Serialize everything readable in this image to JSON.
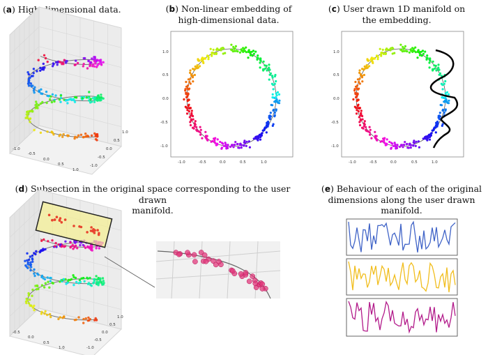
{
  "figure": {
    "panel_a": {
      "letter": "a",
      "caption": "High-dimensional data."
    },
    "panel_b": {
      "letter": "b",
      "caption_line1": "Non-linear embedding of",
      "caption_line2": "high-dimensional data."
    },
    "panel_c": {
      "letter": "c",
      "caption_line1": "User drawn 1D manifold on",
      "caption_line2": "the embedding."
    },
    "panel_d": {
      "letter": "d",
      "caption_line1": "Subsection in the original space corresponding to the user drawn",
      "caption_line2": "manifold."
    },
    "panel_e": {
      "letter": "e",
      "caption_line1": "Behaviour of each of the original",
      "caption_line2": "dimensions along the user drawn manifold."
    }
  },
  "axes_3d": {
    "x_ticks": [
      "-1.0",
      "-0.5",
      "0.0",
      "0.5",
      "1.0"
    ],
    "y_ticks": [
      "1.0",
      "0.5",
      "0.0",
      "-0.5",
      "-1.0"
    ]
  },
  "embedding_axes": {
    "x_ticks": [
      "-1.0",
      "-0.5",
      "0.0",
      "0.5",
      "1.0"
    ],
    "y_ticks": [
      "1.0",
      "0.5",
      "0.0",
      "-0.5",
      "-1.0"
    ]
  },
  "chart_data": [
    {
      "type": "scatter",
      "title": "Non-linear embedding of high-dimensional data.",
      "xlim": [
        -1.2,
        1.2
      ],
      "ylim": [
        -1.2,
        1.2
      ],
      "xticks": [
        -1.0,
        -0.5,
        0.0,
        0.5,
        1.0
      ],
      "yticks": [
        -1.0,
        -0.5,
        0.0,
        0.5,
        1.0
      ],
      "series": [
        {
          "name": "embedded points (ring, radius ~1, hue-coloured by position)",
          "n_points": 320,
          "radius": 1.0
        }
      ]
    },
    {
      "type": "line",
      "title": "Behaviour of each of the original dimensions along the user drawn manifold.",
      "series": [
        {
          "name": "dimension 1",
          "color": "#3f63c7"
        },
        {
          "name": "dimension 2",
          "color": "#f1bd1c"
        },
        {
          "name": "dimension 3",
          "color": "#b21a8a"
        }
      ]
    }
  ],
  "colors": {
    "d1": "#3f63c7",
    "d2": "#f1bd1c",
    "d3": "#b21a8a",
    "highlight": "#f6ef88"
  }
}
